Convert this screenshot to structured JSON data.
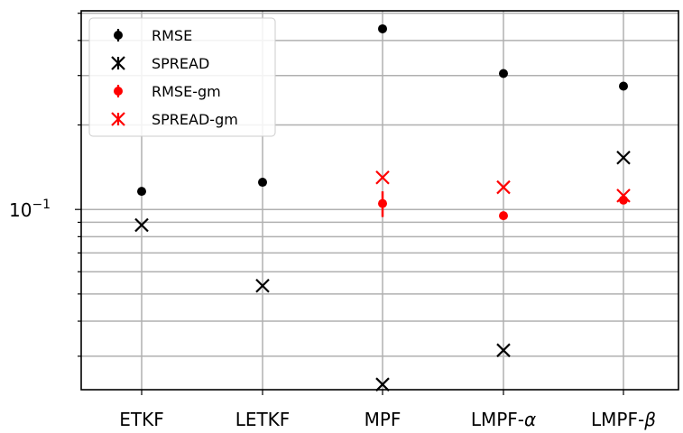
{
  "chart_data": {
    "type": "scatter",
    "title": "",
    "xlabel": "",
    "ylabel": "",
    "yscale": "log",
    "ylim": [
      0.0228,
      0.51
    ],
    "categories": [
      "ETKF",
      "LETKF",
      "MPF",
      "LMPF-α",
      "LMPF-β"
    ],
    "grid": true,
    "legend_position": "top-left",
    "ytick_label": {
      "value": 0.1,
      "base": "10",
      "exponent": "−1"
    },
    "series": [
      {
        "name": "RMSE",
        "marker": "dot",
        "color": "#000000",
        "values": [
          0.116,
          0.125,
          0.44,
          0.305,
          0.275
        ],
        "err": [
          0,
          0,
          0,
          0,
          0
        ]
      },
      {
        "name": "SPREAD",
        "marker": "x",
        "color": "#000000",
        "values": [
          0.088,
          0.0535,
          null,
          0.0315,
          0.153
        ],
        "err": [
          0,
          0,
          0,
          0,
          0
        ]
      },
      {
        "name": "RMSE-gm",
        "marker": "dot",
        "color": "#ff0000",
        "values": [
          null,
          null,
          0.105,
          0.095,
          0.108
        ],
        "err": [
          0,
          0,
          0.011,
          0,
          0.003
        ]
      },
      {
        "name": "SPREAD-gm",
        "marker": "x",
        "color": "#ff0000",
        "values": [
          null,
          null,
          0.13,
          0.12,
          0.112
        ],
        "err": [
          0,
          0,
          0,
          0,
          0
        ]
      }
    ],
    "extra_points": [
      {
        "series": "SPREAD",
        "category": "MPF",
        "value": 0.0238
      }
    ]
  }
}
